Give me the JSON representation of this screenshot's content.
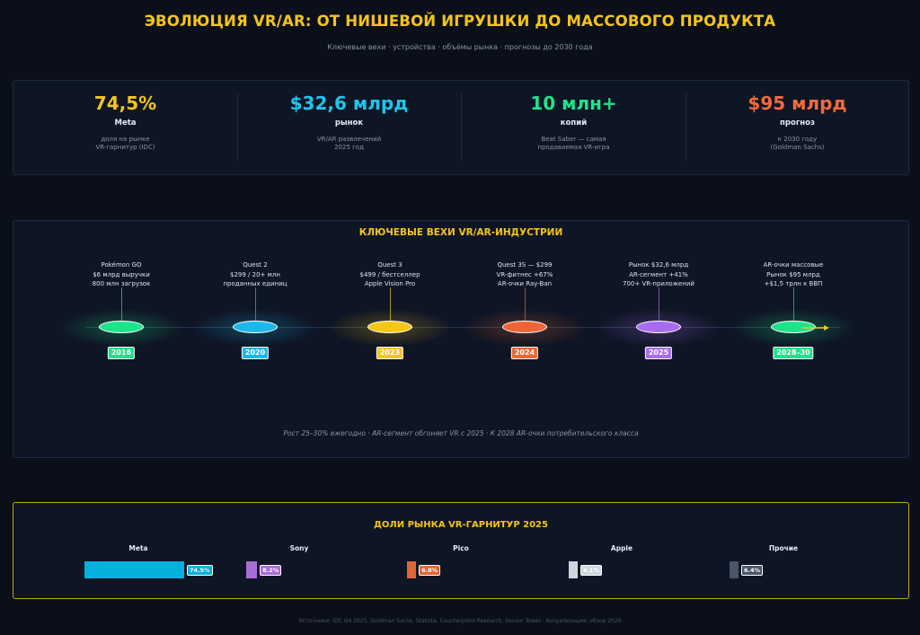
{
  "header": {
    "title": "ЭВОЛЮЦИЯ VR/AR: ОТ НИШЕВОЙ ИГРУШКИ ДО МАССОВОГО ПРОДУКТА",
    "subtitle": "Ключевые вехи · устройства · объёмы рынка · прогнозы до 2030 года"
  },
  "stats": [
    {
      "value": "74,5%",
      "label": "Meta",
      "desc1": "доля на рынке",
      "desc2": "VR-гарнитур (IDC)",
      "color": "#f5c518"
    },
    {
      "value": "$32,6 млрд",
      "label": "рынок",
      "desc1": "VR/AR развлечений",
      "desc2": "2025 год",
      "color": "#1cc6f0"
    },
    {
      "value": "10 млн+",
      "label": "копий",
      "desc1": "Beat Saber — самая",
      "desc2": "продаваемая VR-игра",
      "color": "#1ee38a"
    },
    {
      "value": "$95 млрд",
      "label": "прогноз",
      "desc1": "к 2030 году",
      "desc2": "(Goldman Sachs)",
      "color": "#f26a3d"
    }
  ],
  "timeline": {
    "title": "КЛЮЧЕВЫЕ ВЕХИ VR/AR-ИНДУСТРИИ",
    "footnote": "Рост 25–30% ежегодно · AR-сегмент обгоняет VR с 2025 · К 2028 AR-очки потребительского класса",
    "milestones": [
      {
        "year": "2016",
        "line1": "Pokémon GO",
        "line2": "$6 млрд выручки",
        "line3": "800 млн загрузок",
        "color": "#1ee38a"
      },
      {
        "year": "2020",
        "line1": "Quest 2",
        "line2": "$299 / 20+ млн",
        "line3": "проданных единиц",
        "color": "#1cb8ea"
      },
      {
        "year": "2023",
        "line1": "Quest 3",
        "line2": "$499 / бестселлер",
        "line3": "Apple Vision Pro",
        "color": "#f5c518"
      },
      {
        "year": "2024",
        "line1": "Quest 3S — $299",
        "line2": "VR-фитнес +67%",
        "line3": "AR-очки Ray-Ban",
        "color": "#ee6535"
      },
      {
        "year": "2025",
        "line1": "Рынок $32,6 млрд",
        "line2": "AR-сегмент +41%",
        "line3": "700+ VR-приложений",
        "color": "#a86cf0"
      },
      {
        "year": "2028–30",
        "line1": "AR-очки массовые",
        "line2": "Рынок $95 млрд",
        "line3": "+$1,5 трлн к ВВП",
        "color": "#1ee38a"
      }
    ]
  },
  "shares": {
    "title": "ДОЛИ РЫНКА VR-ГАРНИТУР 2025",
    "items": [
      {
        "name": "Meta",
        "value": 74.5,
        "label": "74.5%",
        "color": "#04b0dc"
      },
      {
        "name": "Sony",
        "value": 8.2,
        "label": "8.2%",
        "color": "#a86cd8"
      },
      {
        "name": "Pico",
        "value": 6.8,
        "label": "6.8%",
        "color": "#e06535"
      },
      {
        "name": "Apple",
        "value": 4.1,
        "label": "4.1%",
        "color": "#cfd6e0"
      },
      {
        "name": "Прочие",
        "value": 6.4,
        "label": "6.4%",
        "color": "#4a5568"
      }
    ]
  },
  "source": "Источники: IDC Q4 2025, Goldman Sachs, Statista, Counterpoint Research, Sensor Tower · Визуализация: обзор 2026"
}
